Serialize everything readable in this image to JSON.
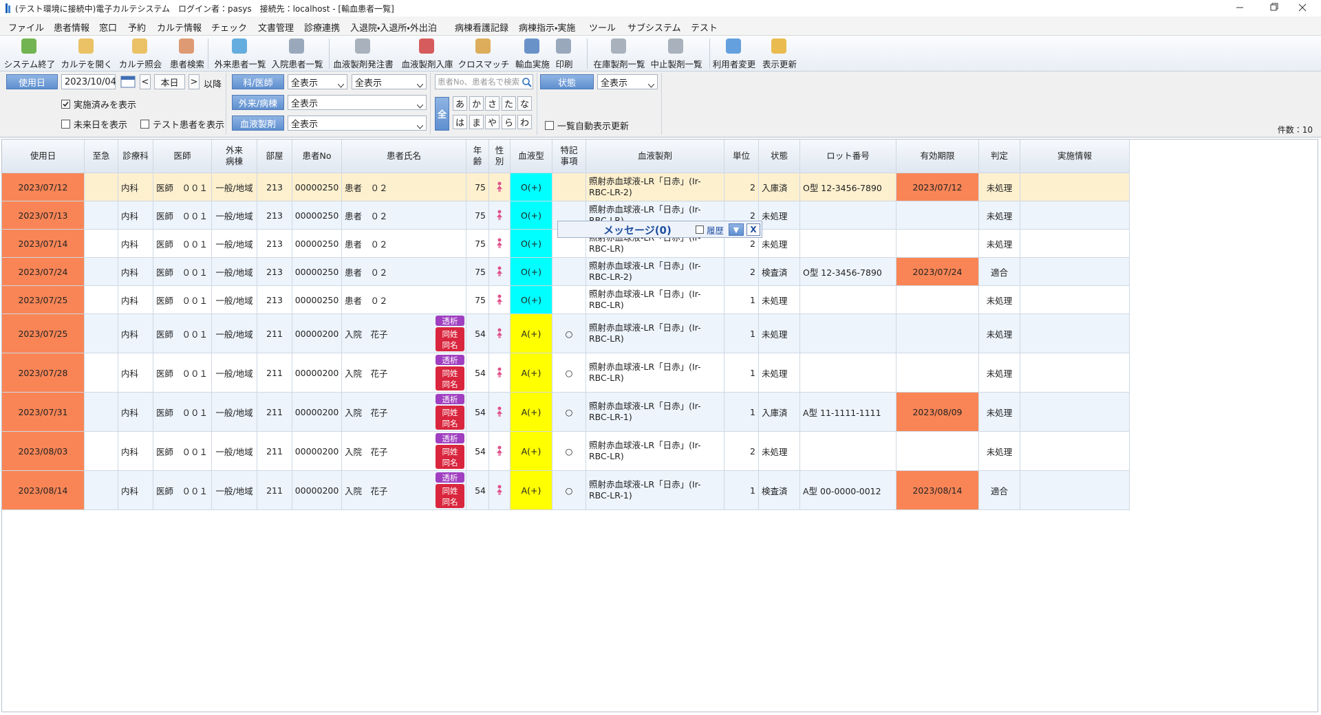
{
  "window": {
    "title": "(テスト環境に接続中)電子カルテシステム　ログイン者：pasys　接続先：localhost - [輸血患者一覧]"
  },
  "menu": [
    "ファイル",
    "患者情報",
    "窓口",
    "予約",
    "カルテ情報",
    "チェック",
    "文書管理",
    "診療連携",
    "入退院・入退所・外出泊",
    "病棟看護記録",
    "病棟指示・実施",
    "ツール",
    "サブシステム",
    "テスト"
  ],
  "toolbar": [
    "システム終了",
    "カルテを開く",
    "カルテ照会",
    "患者検索",
    "外来患者一覧",
    "入院患者一覧",
    "血液製剤発注書",
    "血液製剤入庫",
    "クロスマッチ",
    "輸血実施",
    "印刷",
    "在庫製剤一覧",
    "中止製剤一覧",
    "利用者変更",
    "表示更新"
  ],
  "filters": {
    "date_button": "使用日",
    "date": "2023/10/04",
    "prev": "<",
    "today": "本日",
    "next": ">",
    "after": "以降",
    "checkboxes": [
      {
        "label": "実施済みを表示",
        "checked": true
      },
      {
        "label": "未来日を表示",
        "checked": false
      },
      {
        "label": "テスト患者を表示",
        "checked": false
      },
      {
        "label": "一覧自動表示更新",
        "checked": false
      }
    ],
    "dept_button": "科/医師",
    "dept": "全表示",
    "doctor": "全表示",
    "ward_button": "外来/病棟",
    "ward": "全表示",
    "product_button": "血液製剤",
    "product": "全表示",
    "search_placeholder": "患者No、患者名で検索",
    "kana_all": "全",
    "kana": [
      [
        "あ",
        "か",
        "さ",
        "た",
        "な"
      ],
      [
        "は",
        "ま",
        "や",
        "ら",
        "わ"
      ]
    ],
    "status_button": "状態",
    "status": "全表示",
    "count": "件数：10"
  },
  "table": {
    "columns": [
      {
        "key": "date",
        "label": "使用日"
      },
      {
        "key": "urgent",
        "label": "至急"
      },
      {
        "key": "dept",
        "label": "診療科"
      },
      {
        "key": "doctor",
        "label": "医師"
      },
      {
        "key": "ward",
        "label": "外来\n病棟"
      },
      {
        "key": "room",
        "label": "部屋"
      },
      {
        "key": "patient_no",
        "label": "患者No"
      },
      {
        "key": "name",
        "label": "患者氏名"
      },
      {
        "key": "age",
        "label": "年\n齢"
      },
      {
        "key": "sex",
        "label": "性\n別"
      },
      {
        "key": "blood_type",
        "label": "血液型"
      },
      {
        "key": "special",
        "label": "特記\n事項"
      },
      {
        "key": "product",
        "label": "血液製剤"
      },
      {
        "key": "unit",
        "label": "単位"
      },
      {
        "key": "status",
        "label": "状態"
      },
      {
        "key": "lot",
        "label": "ロット番号"
      },
      {
        "key": "expiry",
        "label": "有効期限"
      },
      {
        "key": "judgment",
        "label": "判定"
      },
      {
        "key": "info",
        "label": "実施情報"
      }
    ],
    "date_color": "#f98556",
    "expiry_color": "#f98556",
    "selected_row": 0,
    "selected_color": "#fdf0cf",
    "blood_colors": {
      "O(+)": "#00ffff",
      "A(+)": "#ffff00"
    },
    "rows": [
      {
        "date": "2023/07/12",
        "dept": "内科",
        "doctor": "医師　００１",
        "ward": "一般/地域",
        "room": "213",
        "patient_no": "00000250",
        "name": "患者　０２",
        "age": "75",
        "blood_type": "O(+)",
        "product": "照射赤血球液-LR「日赤」(Ir-RBC-LR-2)",
        "unit": "2",
        "status": "入庫済",
        "lot": "O型 12-3456-7890",
        "expiry": "2023/07/12",
        "judgment": "未処理"
      },
      {
        "date": "2023/07/13",
        "dept": "内科",
        "doctor": "医師　００１",
        "ward": "一般/地域",
        "room": "213",
        "patient_no": "00000250",
        "name": "患者　０２",
        "age": "75",
        "blood_type": "O(+)",
        "product": "照射赤血球液-LR「日赤」(Ir-RBC-LR)",
        "unit": "2",
        "status": "未処理",
        "judgment": "未処理"
      },
      {
        "date": "2023/07/14",
        "dept": "内科",
        "doctor": "医師　００１",
        "ward": "一般/地域",
        "room": "213",
        "patient_no": "00000250",
        "name": "患者　０２",
        "age": "75",
        "blood_type": "O(+)",
        "product": "照射赤血球液-LR「日赤」(Ir-RBC-LR)",
        "unit": "2",
        "status": "未処理",
        "judgment": "未処理"
      },
      {
        "date": "2023/07/24",
        "dept": "内科",
        "doctor": "医師　００１",
        "ward": "一般/地域",
        "room": "213",
        "patient_no": "00000250",
        "name": "患者　０２",
        "age": "75",
        "blood_type": "O(+)",
        "product": "照射赤血球液-LR「日赤」(Ir-RBC-LR-2)",
        "unit": "2",
        "status": "検査済",
        "lot": "O型 12-3456-7890",
        "expiry": "2023/07/24",
        "judgment": "適合"
      },
      {
        "date": "2023/07/25",
        "dept": "内科",
        "doctor": "医師　００１",
        "ward": "一般/地域",
        "room": "213",
        "patient_no": "00000250",
        "name": "患者　０２",
        "age": "75",
        "blood_type": "O(+)",
        "product": "照射赤血球液-LR「日赤」(Ir-RBC-LR)",
        "unit": "1",
        "status": "未処理",
        "judgment": "未処理"
      },
      {
        "date": "2023/07/25",
        "dept": "内科",
        "doctor": "医師　００１",
        "ward": "一般/地域",
        "room": "211",
        "patient_no": "00000200",
        "name": "入院　花子",
        "tags": [
          "透析",
          "同姓",
          "同名"
        ],
        "age": "54",
        "blood_type": "A(+)",
        "special": "○",
        "product": "照射赤血球液-LR「日赤」(Ir-RBC-LR)",
        "unit": "1",
        "status": "未処理",
        "judgment": "未処理"
      },
      {
        "date": "2023/07/28",
        "dept": "内科",
        "doctor": "医師　００１",
        "ward": "一般/地域",
        "room": "211",
        "patient_no": "00000200",
        "name": "入院　花子",
        "tags": [
          "透析",
          "同姓",
          "同名"
        ],
        "age": "54",
        "blood_type": "A(+)",
        "special": "○",
        "product": "照射赤血球液-LR「日赤」(Ir-RBC-LR)",
        "unit": "1",
        "status": "未処理",
        "judgment": "未処理"
      },
      {
        "date": "2023/07/31",
        "dept": "内科",
        "doctor": "医師　００１",
        "ward": "一般/地域",
        "room": "211",
        "patient_no": "00000200",
        "name": "入院　花子",
        "tags": [
          "透析",
          "同姓",
          "同名"
        ],
        "age": "54",
        "blood_type": "A(+)",
        "special": "○",
        "product": "照射赤血球液-LR「日赤」(Ir-RBC-LR-1)",
        "unit": "1",
        "status": "入庫済",
        "lot": "A型 11-1111-1111",
        "expiry": "2023/08/09",
        "judgment": "未処理"
      },
      {
        "date": "2023/08/03",
        "dept": "内科",
        "doctor": "医師　００１",
        "ward": "一般/地域",
        "room": "211",
        "patient_no": "00000200",
        "name": "入院　花子",
        "tags": [
          "透析",
          "同姓",
          "同名"
        ],
        "age": "54",
        "blood_type": "A(+)",
        "special": "○",
        "product": "照射赤血球液-LR「日赤」(Ir-RBC-LR)",
        "unit": "2",
        "status": "未処理",
        "judgment": "未処理"
      },
      {
        "date": "2023/08/14",
        "dept": "内科",
        "doctor": "医師　００１",
        "ward": "一般/地域",
        "room": "211",
        "patient_no": "00000200",
        "name": "入院　花子",
        "tags": [
          "透析",
          "同姓",
          "同名"
        ],
        "age": "54",
        "blood_type": "A(+)",
        "special": "○",
        "product": "照射赤血球液-LR「日赤」(Ir-RBC-LR-1)",
        "unit": "1",
        "status": "検査済",
        "lot": "A型 00-0000-0012",
        "expiry": "2023/08/14",
        "judgment": "適合"
      }
    ]
  },
  "message": {
    "title": "メッセージ(0)",
    "history": "履歴",
    "toggle": "▼",
    "close": "X"
  }
}
